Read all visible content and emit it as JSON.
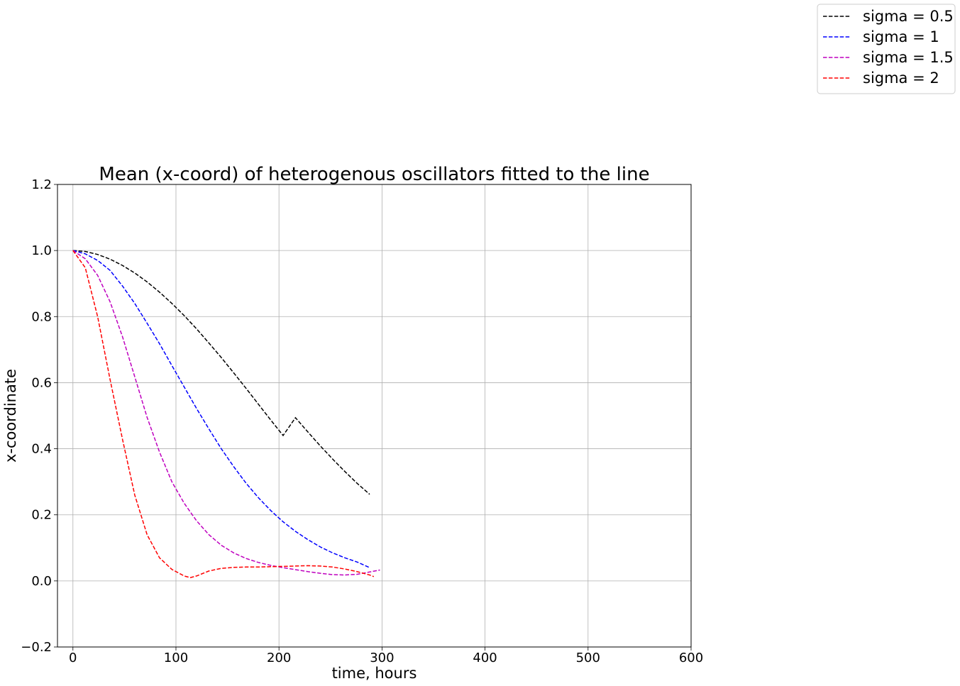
{
  "chart_data": {
    "type": "line",
    "title": "Mean (x-coord) of heterogenous oscillators fitted to the line",
    "xlabel": "time, hours",
    "ylabel": "x-coordinate",
    "xlim": [
      -15,
      600
    ],
    "ylim": [
      -0.2,
      1.2
    ],
    "xticks": [
      0,
      100,
      200,
      300,
      400,
      500,
      600
    ],
    "yticks": [
      -0.2,
      0.0,
      0.2,
      0.4,
      0.6,
      0.8,
      1.0,
      1.2
    ],
    "xtick_labels": [
      "0",
      "100",
      "200",
      "300",
      "400",
      "500",
      "600"
    ],
    "ytick_labels": [
      "−0.2",
      "0.0",
      "0.2",
      "0.4",
      "0.6",
      "0.8",
      "1.0",
      "1.2"
    ],
    "grid": true,
    "legend_position": "top-right, outside plot",
    "line_style": "dashed",
    "series": [
      {
        "name": "sigma = 0.5",
        "color": "#000000",
        "x": [
          0,
          12,
          24,
          36,
          48,
          60,
          72,
          84,
          96,
          108,
          120,
          132,
          144,
          156,
          168,
          180,
          192,
          204,
          216,
          228,
          240,
          252,
          264,
          276,
          288
        ],
        "y": [
          1.0,
          0.997,
          0.988,
          0.974,
          0.955,
          0.932,
          0.905,
          0.874,
          0.84,
          0.803,
          0.763,
          0.72,
          0.676,
          0.63,
          0.583,
          0.535,
          0.487,
          0.44,
          0.494,
          0.451,
          0.409,
          0.369,
          0.331,
          0.295,
          0.262
        ]
      },
      {
        "name": "sigma = 1",
        "color": "#0000ff",
        "x": [
          0,
          12,
          24,
          36,
          48,
          60,
          72,
          84,
          96,
          108,
          120,
          132,
          144,
          156,
          168,
          180,
          192,
          204,
          216,
          228,
          240,
          252,
          264,
          276,
          288
        ],
        "y": [
          1.0,
          0.99,
          0.97,
          0.94,
          0.893,
          0.84,
          0.78,
          0.718,
          0.652,
          0.587,
          0.522,
          0.46,
          0.4,
          0.346,
          0.296,
          0.252,
          0.213,
          0.179,
          0.15,
          0.125,
          0.103,
          0.085,
          0.07,
          0.057,
          0.04
        ]
      },
      {
        "name": "sigma = 1.5",
        "color": "#bf00bf",
        "x": [
          0,
          12,
          24,
          36,
          48,
          60,
          72,
          84,
          96,
          108,
          120,
          132,
          144,
          156,
          168,
          180,
          192,
          204,
          216,
          228,
          240,
          252,
          264,
          276,
          288,
          298
        ],
        "y": [
          1.0,
          0.975,
          0.925,
          0.845,
          0.74,
          0.618,
          0.495,
          0.39,
          0.3,
          0.235,
          0.182,
          0.14,
          0.108,
          0.085,
          0.068,
          0.056,
          0.047,
          0.04,
          0.034,
          0.028,
          0.023,
          0.019,
          0.018,
          0.02,
          0.027,
          0.033
        ]
      },
      {
        "name": "sigma = 2",
        "color": "#ff0000",
        "x": [
          0,
          12,
          24,
          36,
          48,
          60,
          72,
          84,
          96,
          108,
          114,
          120,
          132,
          144,
          156,
          168,
          180,
          192,
          204,
          216,
          228,
          240,
          252,
          264,
          276,
          288,
          292
        ],
        "y": [
          1.0,
          0.948,
          0.8,
          0.61,
          0.43,
          0.26,
          0.14,
          0.07,
          0.035,
          0.015,
          0.01,
          0.015,
          0.03,
          0.038,
          0.041,
          0.042,
          0.042,
          0.043,
          0.044,
          0.045,
          0.046,
          0.045,
          0.042,
          0.036,
          0.028,
          0.018,
          0.013
        ]
      }
    ]
  }
}
